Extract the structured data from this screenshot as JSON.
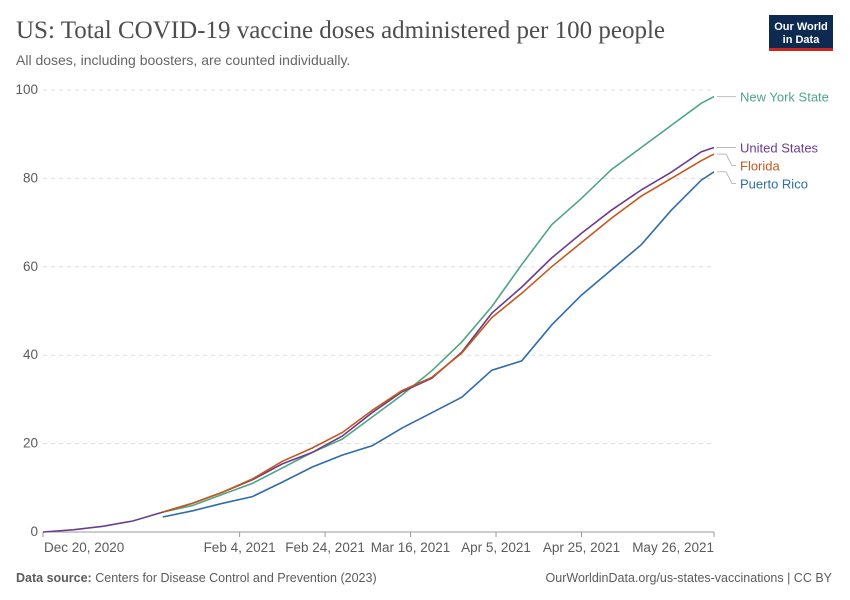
{
  "chart_data": {
    "type": "line",
    "title": "US: Total COVID-19 vaccine doses administered per 100 people",
    "subtitle": "All doses, including boosters, are counted individually.",
    "source_label": "Data source:",
    "source": "Centers for Disease Control and Prevention (2023)",
    "url": "OurWorldinData.org/us-states-vaccinations | CC BY",
    "logo": [
      "Our World",
      "in Data"
    ],
    "x": [
      "2020-12-20",
      "2020-12-27",
      "2021-01-03",
      "2021-01-10",
      "2021-01-17",
      "2021-01-24",
      "2021-01-31",
      "2021-02-07",
      "2021-02-14",
      "2021-02-21",
      "2021-02-28",
      "2021-03-07",
      "2021-03-14",
      "2021-03-21",
      "2021-03-28",
      "2021-04-04",
      "2021-04-11",
      "2021-04-18",
      "2021-04-25",
      "2021-05-02",
      "2021-05-09",
      "2021-05-16",
      "2021-05-23",
      "2021-05-26"
    ],
    "series": [
      {
        "name": "New York State",
        "color": "#4fa584",
        "values": [
          null,
          null,
          null,
          null,
          4.5,
          6,
          8.5,
          11,
          14.5,
          18,
          21,
          26,
          31,
          36.5,
          43,
          51,
          60.5,
          69.5,
          75.5,
          82,
          87,
          92,
          97,
          98.5
        ]
      },
      {
        "name": "United States",
        "color": "#6b3d8f",
        "values": [
          0,
          0.5,
          1.3,
          2.5,
          4.5,
          6.5,
          9,
          11.8,
          15.4,
          18,
          21.7,
          27,
          31.7,
          34.8,
          40.7,
          49.5,
          55.4,
          62,
          67.6,
          72.8,
          77.4,
          81.4,
          86,
          87
        ]
      },
      {
        "name": "Florida",
        "color": "#c4581d",
        "values": [
          null,
          null,
          null,
          null,
          4.5,
          6.5,
          9,
          12,
          16,
          19,
          22.5,
          27.5,
          32,
          35,
          40.5,
          48.5,
          54,
          60,
          65.5,
          71,
          76,
          80,
          84,
          85.5
        ]
      },
      {
        "name": "Puerto Rico",
        "color": "#2f6cab",
        "values": [
          null,
          null,
          null,
          null,
          3.4,
          4.8,
          6.5,
          8,
          11.3,
          14.7,
          17.4,
          19.5,
          23.5,
          27,
          30.5,
          36.6,
          38.7,
          46.8,
          53.6,
          59.3,
          65,
          72.8,
          79.6,
          81.5
        ]
      }
    ],
    "xlim": [
      "2020-12-20",
      "2021-05-26"
    ],
    "xticks": [
      {
        "value": "2020-12-20",
        "label": "Dec 20, 2020"
      },
      {
        "value": "2021-02-04",
        "label": "Feb 4, 2021"
      },
      {
        "value": "2021-02-24",
        "label": "Feb 24, 2021"
      },
      {
        "value": "2021-03-16",
        "label": "Mar 16, 2021"
      },
      {
        "value": "2021-04-05",
        "label": "Apr 5, 2021"
      },
      {
        "value": "2021-04-25",
        "label": "Apr 25, 2021"
      },
      {
        "value": "2021-05-26",
        "label": "May 26, 2021"
      }
    ],
    "ylim": [
      0,
      100
    ],
    "yticks": [
      0,
      20,
      40,
      60,
      80,
      100
    ],
    "grid": true
  }
}
